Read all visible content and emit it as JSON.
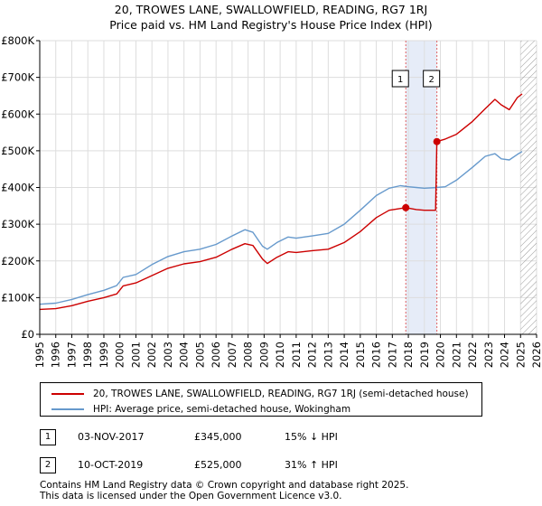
{
  "title_line1": "20, TROWES LANE, SWALLOWFIELD, READING, RG7 1RJ",
  "title_line2": "Price paid vs. HM Land Registry's House Price Index (HPI)",
  "colors": {
    "property": "#cc0000",
    "hpi": "#6699cc",
    "highlight": "#dde6f5",
    "marker_line": "#e06060"
  },
  "legend": {
    "property_label": "20, TROWES LANE, SWALLOWFIELD, READING, RG7 1RJ (semi-detached house)",
    "hpi_label": "HPI: Average price, semi-detached house, Wokingham"
  },
  "transactions": [
    {
      "num": "1",
      "date": "03-NOV-2017",
      "price": "£345,000",
      "hpi": "15% ↓ HPI"
    },
    {
      "num": "2",
      "date": "10-OCT-2019",
      "price": "£525,000",
      "hpi": "31% ↑ HPI"
    }
  ],
  "footer_line1": "Contains HM Land Registry data © Crown copyright and database right 2025.",
  "footer_line2": "This data is licensed under the Open Government Licence v3.0.",
  "chart_data": {
    "type": "line",
    "xlim": [
      1995,
      2026
    ],
    "ylim": [
      0,
      800000
    ],
    "x_ticks": [
      "1995",
      "1996",
      "1997",
      "1998",
      "1999",
      "2000",
      "2001",
      "2002",
      "2003",
      "2004",
      "2005",
      "2006",
      "2007",
      "2008",
      "2009",
      "2010",
      "2011",
      "2012",
      "2013",
      "2014",
      "2015",
      "2016",
      "2017",
      "2018",
      "2019",
      "2020",
      "2021",
      "2022",
      "2023",
      "2024",
      "2025",
      "2026"
    ],
    "y_ticks": [
      {
        "value": 0,
        "label": "£0"
      },
      {
        "value": 100000,
        "label": "£100K"
      },
      {
        "value": 200000,
        "label": "£200K"
      },
      {
        "value": 300000,
        "label": "£300K"
      },
      {
        "value": 400000,
        "label": "£400K"
      },
      {
        "value": 500000,
        "label": "£500K"
      },
      {
        "value": 600000,
        "label": "£600K"
      },
      {
        "value": 700000,
        "label": "£700K"
      },
      {
        "value": 800000,
        "label": "£800K"
      }
    ],
    "grid": true,
    "highlight_range": [
      2017.84,
      2019.78
    ],
    "hatch_from": 2025.0,
    "markers": [
      {
        "label": "1",
        "x": 2017.84,
        "value": 345000
      },
      {
        "label": "2",
        "x": 2019.78,
        "value": 525000
      }
    ],
    "series": [
      {
        "name": "20, TROWES LANE, SWALLOWFIELD, READING, RG7 1RJ (semi-detached house)",
        "color": "#cc0000",
        "points": [
          [
            1995.0,
            68000
          ],
          [
            1996.0,
            70000
          ],
          [
            1997.0,
            78000
          ],
          [
            1998.0,
            90000
          ],
          [
            1999.0,
            100000
          ],
          [
            1999.8,
            110000
          ],
          [
            2000.2,
            132000
          ],
          [
            2001.0,
            140000
          ],
          [
            2002.0,
            160000
          ],
          [
            2003.0,
            180000
          ],
          [
            2004.0,
            192000
          ],
          [
            2005.0,
            198000
          ],
          [
            2006.0,
            210000
          ],
          [
            2007.0,
            232000
          ],
          [
            2007.8,
            247000
          ],
          [
            2008.3,
            242000
          ],
          [
            2008.9,
            205000
          ],
          [
            2009.2,
            193000
          ],
          [
            2009.8,
            210000
          ],
          [
            2010.5,
            225000
          ],
          [
            2011.0,
            223000
          ],
          [
            2012.0,
            228000
          ],
          [
            2013.0,
            232000
          ],
          [
            2014.0,
            250000
          ],
          [
            2015.0,
            280000
          ],
          [
            2016.0,
            318000
          ],
          [
            2016.8,
            338000
          ],
          [
            2017.84,
            345000
          ],
          [
            2018.5,
            340000
          ],
          [
            2019.0,
            338000
          ],
          [
            2019.7,
            338000
          ],
          [
            2019.78,
            525000
          ],
          [
            2020.3,
            532000
          ],
          [
            2021.0,
            545000
          ],
          [
            2022.0,
            580000
          ],
          [
            2022.8,
            615000
          ],
          [
            2023.4,
            640000
          ],
          [
            2023.8,
            625000
          ],
          [
            2024.3,
            612000
          ],
          [
            2024.8,
            645000
          ],
          [
            2025.1,
            655000
          ]
        ]
      },
      {
        "name": "HPI: Average price, semi-detached house, Wokingham",
        "color": "#6699cc",
        "points": [
          [
            1995.0,
            82000
          ],
          [
            1996.0,
            85000
          ],
          [
            1997.0,
            95000
          ],
          [
            1998.0,
            108000
          ],
          [
            1999.0,
            120000
          ],
          [
            1999.8,
            133000
          ],
          [
            2000.2,
            155000
          ],
          [
            2001.0,
            163000
          ],
          [
            2002.0,
            190000
          ],
          [
            2003.0,
            212000
          ],
          [
            2004.0,
            225000
          ],
          [
            2005.0,
            232000
          ],
          [
            2006.0,
            245000
          ],
          [
            2007.0,
            268000
          ],
          [
            2007.8,
            285000
          ],
          [
            2008.3,
            278000
          ],
          [
            2008.9,
            240000
          ],
          [
            2009.2,
            232000
          ],
          [
            2009.8,
            250000
          ],
          [
            2010.5,
            265000
          ],
          [
            2011.0,
            262000
          ],
          [
            2012.0,
            268000
          ],
          [
            2013.0,
            275000
          ],
          [
            2014.0,
            300000
          ],
          [
            2015.0,
            338000
          ],
          [
            2016.0,
            378000
          ],
          [
            2016.8,
            398000
          ],
          [
            2017.5,
            405000
          ],
          [
            2018.0,
            402000
          ],
          [
            2018.5,
            400000
          ],
          [
            2019.0,
            398000
          ],
          [
            2019.78,
            400000
          ],
          [
            2020.3,
            402000
          ],
          [
            2021.0,
            420000
          ],
          [
            2022.0,
            455000
          ],
          [
            2022.8,
            485000
          ],
          [
            2023.4,
            492000
          ],
          [
            2023.8,
            478000
          ],
          [
            2024.3,
            475000
          ],
          [
            2024.8,
            490000
          ],
          [
            2025.1,
            498000
          ]
        ]
      }
    ]
  }
}
